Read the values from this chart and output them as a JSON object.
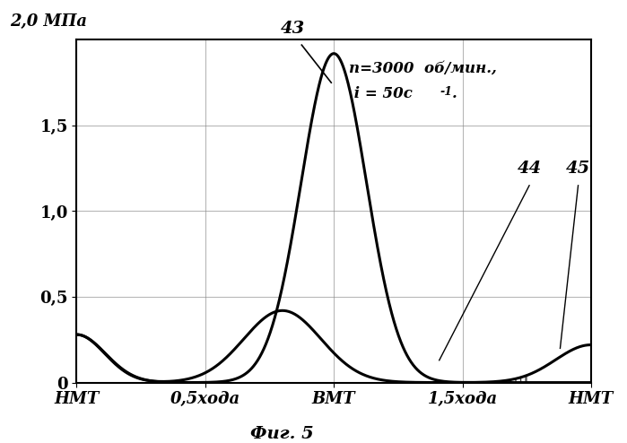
{
  "title": "Фиг. 5",
  "ylabel": "2,0 МПа",
  "xtick_labels": [
    "НМТ",
    "0,5хода",
    "ВМТ",
    "1,5хода",
    "НМТ"
  ],
  "ytick_labels": [
    "0",
    "0,5",
    "1,0",
    "1,5"
  ],
  "annotation_line1": "n=3000  об/мин.,",
  "annotation_line2": " i = 50с",
  "annotation_sup": "-1",
  "annotation_dot": ".",
  "label_43": "43",
  "label_44": "44",
  "label_45": "45",
  "curve_color": "#000000",
  "hatch_color": "#404040",
  "bg_color": "#ffffff",
  "ylim": [
    0,
    2.0
  ],
  "xlim": [
    0,
    4.0
  ],
  "grid_color": "#888888",
  "figsize": [
    6.99,
    4.94
  ],
  "dpi": 100
}
